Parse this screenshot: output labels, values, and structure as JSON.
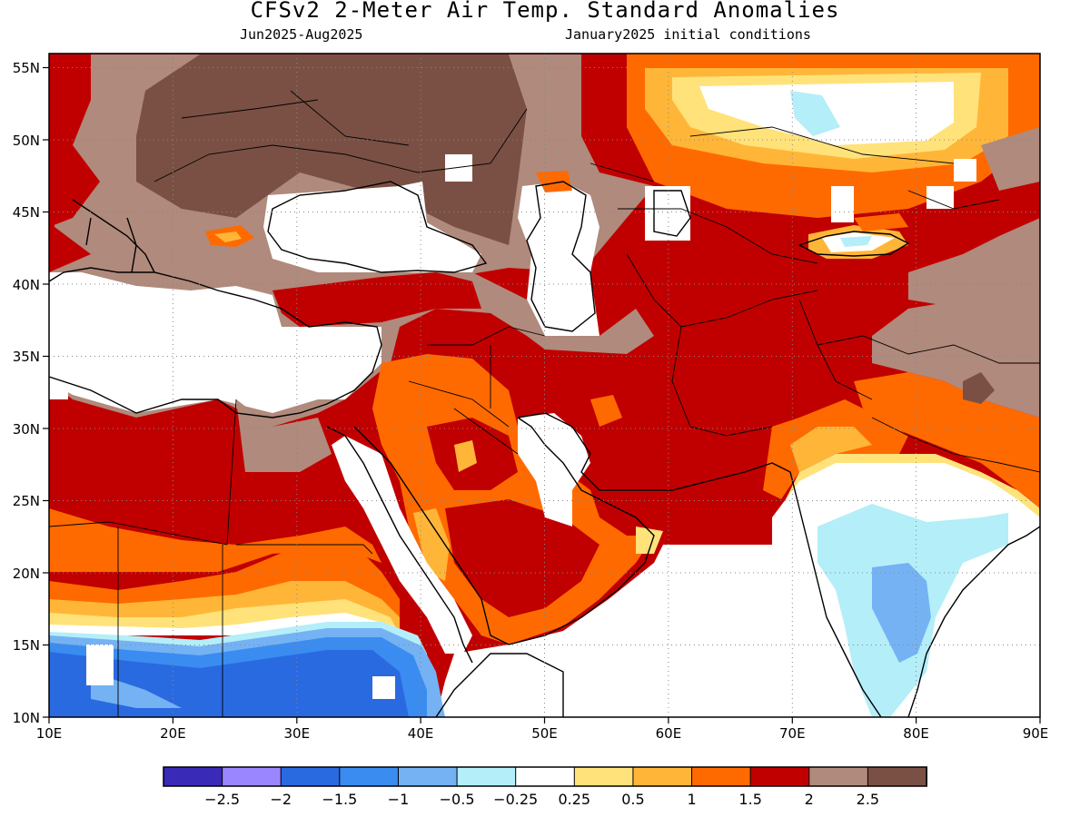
{
  "title": "CFSv2 2-Meter Air Temp. Standard Anomalies",
  "period": "Jun2025-Aug2025",
  "init": "January2025 initial conditions",
  "map": {
    "lon_range": [
      10,
      90
    ],
    "lat_range": [
      10,
      56
    ],
    "x_ticks": [
      "10E",
      "20E",
      "30E",
      "40E",
      "50E",
      "60E",
      "70E",
      "80E",
      "90E"
    ],
    "y_ticks": [
      "10N",
      "15N",
      "20N",
      "25N",
      "30N",
      "35N",
      "40N",
      "45N",
      "50N",
      "55N"
    ],
    "grid": "dotted"
  },
  "colorbar": {
    "colors": [
      "#3a2ab8",
      "#9a86ff",
      "#2a6ae0",
      "#3a8cf0",
      "#74b2f4",
      "#b4eef8",
      "#ffffff",
      "#ffe27a",
      "#ffb638",
      "#ff6a00",
      "#c00000",
      "#b08a7c",
      "#7a5044"
    ],
    "labels": [
      "-2.5",
      "-2",
      "-1.5",
      "-1",
      "-0.5",
      "-0.25",
      "0.25",
      "0.5",
      "1",
      "1.5",
      "2",
      "2.5"
    ]
  }
}
